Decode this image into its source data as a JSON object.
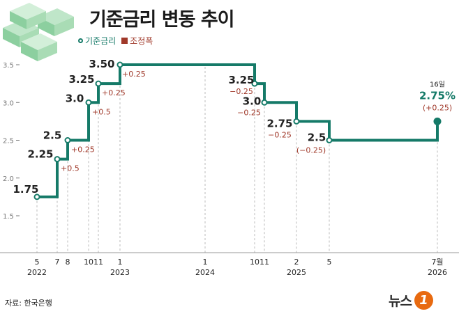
{
  "header": {
    "title": "기준금리 변동 추이",
    "legend_rate": "기준금리",
    "legend_change": "조정폭",
    "source": "자료: 한국은행",
    "logo_text": "뉴스",
    "logo_mark": "1"
  },
  "colors": {
    "line": "#157a68",
    "change": "#a0392a",
    "grid": "#bbbbbb",
    "text": "#222222",
    "axis": "#777777",
    "logo_orange": "#e86a10"
  },
  "icon": "money-stack-icon",
  "chart_data": {
    "type": "line",
    "title": "기준금리 변동 추이",
    "line_shape": "step",
    "series": [
      {
        "name": "기준금리",
        "values": [
          1.75,
          2.25,
          2.5,
          3.0,
          3.25,
          3.5,
          3.25,
          3.0,
          2.75,
          2.5,
          2.75
        ]
      }
    ],
    "change_series_name": "조정폭",
    "ylim": [
      1.0,
      3.6
    ],
    "yticks": [
      "1.5",
      "2.0",
      "2.5",
      "3.0",
      "3.5"
    ],
    "points": [
      {
        "date": "2022-05",
        "value": 1.75,
        "label": "1.75",
        "change": ""
      },
      {
        "date": "2022-07",
        "value": 2.25,
        "label": "2.25",
        "change": "+0.5"
      },
      {
        "date": "2022-08",
        "value": 2.5,
        "label": "2.5",
        "change": "+0.25"
      },
      {
        "date": "2022-10",
        "value": 3.0,
        "label": "3.0",
        "change": "+0.5"
      },
      {
        "date": "2022-11",
        "value": 3.25,
        "label": "3.25",
        "change": "+0.25"
      },
      {
        "date": "2023-01",
        "value": 3.5,
        "label": "3.50",
        "change": "+0.25"
      },
      {
        "date": "2024-10",
        "value": 3.25,
        "label": "3.25",
        "change": "−0.25"
      },
      {
        "date": "2024-11",
        "value": 3.0,
        "label": "3.0",
        "change": "−0.25"
      },
      {
        "date": "2025-02",
        "value": 2.75,
        "label": "2.75",
        "change": "−0.25"
      },
      {
        "date": "2025-05",
        "value": 2.5,
        "label": "2.5",
        "change": "(−0.25)"
      },
      {
        "date": "2026-07",
        "value": 2.75,
        "label": "2.75%",
        "change": "(+0.25)",
        "note": "16일"
      }
    ],
    "x_month_ticks": [
      {
        "date": "2022-05",
        "label": "5"
      },
      {
        "date": "2022-07",
        "label": "7"
      },
      {
        "date": "2022-08",
        "label": "8"
      },
      {
        "date": "2022-10",
        "label": "10"
      },
      {
        "date": "2022-11",
        "label": "11"
      },
      {
        "date": "2023-01",
        "label": "1"
      },
      {
        "date": "2024-01",
        "label": "1"
      },
      {
        "date": "2024-10",
        "label": "10"
      },
      {
        "date": "2024-11",
        "label": "11"
      },
      {
        "date": "2025-02",
        "label": "2"
      },
      {
        "date": "2025-05",
        "label": "5"
      },
      {
        "date": "2026-07",
        "label": "7월"
      }
    ],
    "x_year_ticks": [
      {
        "date": "2022-05",
        "label": "2022"
      },
      {
        "date": "2023-01",
        "label": "2023"
      },
      {
        "date": "2024-01",
        "label": "2024"
      },
      {
        "date": "2025-02",
        "label": "2025"
      },
      {
        "date": "2026-07",
        "label": "2026"
      }
    ]
  }
}
